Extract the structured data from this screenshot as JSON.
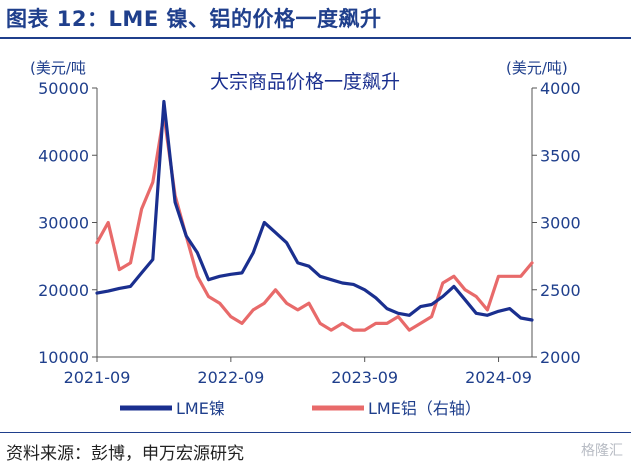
{
  "header": {
    "title": "图表 12：LME 镍、铝的价格一度飙升"
  },
  "footer": {
    "source": "资料来源：彭博，申万宏源研究",
    "watermark": "格隆汇"
  },
  "colors": {
    "nickel": "#1a2f8f",
    "aluminum": "#e86a6a",
    "axis_text": "#1f3f8c",
    "title": "#1f3f8c"
  },
  "chart_data": {
    "type": "line",
    "title": "大宗商品价格一度飙升",
    "left_unit": "(美元/吨",
    "right_unit": "(美元/吨)",
    "ylim_left": [
      10000,
      50000
    ],
    "ylim_right": [
      2000,
      4000
    ],
    "yticks_left": [
      "50000",
      "40000",
      "30000",
      "20000",
      "10000"
    ],
    "yticks_right": [
      "4000",
      "3500",
      "3000",
      "2500",
      "2000"
    ],
    "xticks": [
      "2021-09",
      "2022-09",
      "2023-09",
      "2024-09"
    ],
    "xlim": [
      "2021-09",
      "2024-12"
    ],
    "legend": [
      "LME镍",
      "LME铝（右轴）"
    ],
    "series": [
      {
        "name": "LME镍",
        "axis": "left",
        "x": [
          "2021-09",
          "2021-10",
          "2021-11",
          "2021-12",
          "2022-01",
          "2022-02",
          "2022-03",
          "2022-04",
          "2022-05",
          "2022-06",
          "2022-07",
          "2022-08",
          "2022-09",
          "2022-10",
          "2022-11",
          "2022-12",
          "2023-01",
          "2023-02",
          "2023-03",
          "2023-04",
          "2023-05",
          "2023-06",
          "2023-07",
          "2023-08",
          "2023-09",
          "2023-10",
          "2023-11",
          "2023-12",
          "2024-01",
          "2024-02",
          "2024-03",
          "2024-04",
          "2024-05",
          "2024-06",
          "2024-07",
          "2024-08",
          "2024-09",
          "2024-10",
          "2024-11",
          "2024-12"
        ],
        "values": [
          19500,
          19800,
          20200,
          20500,
          22500,
          24500,
          48000,
          33000,
          28000,
          25500,
          21500,
          22000,
          22300,
          22500,
          25500,
          30000,
          28500,
          27000,
          24000,
          23500,
          22000,
          21500,
          21000,
          20800,
          20000,
          18800,
          17200,
          16500,
          16200,
          17500,
          17800,
          19000,
          20500,
          18500,
          16500,
          16200,
          16800,
          17200,
          15800,
          15500
        ]
      },
      {
        "name": "LME铝（右轴）",
        "axis": "right",
        "x": [
          "2021-09",
          "2021-10",
          "2021-11",
          "2021-12",
          "2022-01",
          "2022-02",
          "2022-03",
          "2022-04",
          "2022-05",
          "2022-06",
          "2022-07",
          "2022-08",
          "2022-09",
          "2022-10",
          "2022-11",
          "2022-12",
          "2023-01",
          "2023-02",
          "2023-03",
          "2023-04",
          "2023-05",
          "2023-06",
          "2023-07",
          "2023-08",
          "2023-09",
          "2023-10",
          "2023-11",
          "2023-12",
          "2024-01",
          "2024-02",
          "2024-03",
          "2024-04",
          "2024-05",
          "2024-06",
          "2024-07",
          "2024-08",
          "2024-09",
          "2024-10",
          "2024-11",
          "2024-12"
        ],
        "values": [
          2850,
          3000,
          2650,
          2700,
          3100,
          3300,
          3800,
          3200,
          2900,
          2600,
          2450,
          2400,
          2300,
          2250,
          2350,
          2400,
          2500,
          2400,
          2350,
          2400,
          2250,
          2200,
          2250,
          2200,
          2200,
          2250,
          2250,
          2300,
          2200,
          2250,
          2300,
          2550,
          2600,
          2500,
          2450,
          2350,
          2600,
          2600,
          2600,
          2700
        ]
      }
    ]
  }
}
